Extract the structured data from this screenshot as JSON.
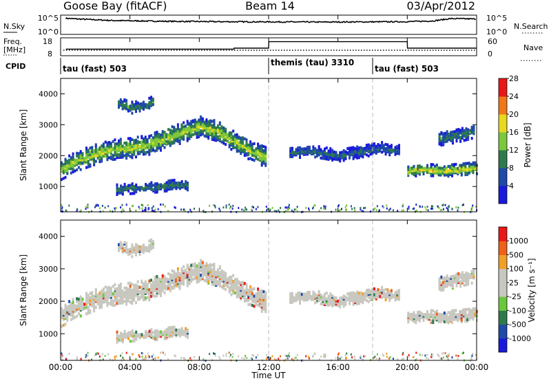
{
  "header": {
    "station": "Goose Bay (fitACF)",
    "beam": "Beam 14",
    "date": "03/Apr/2012"
  },
  "sky_panel": {
    "left_label": "N.Sky",
    "right_label": "N.Search",
    "left_ticks": [
      "10^5",
      "10^0"
    ],
    "right_ticks": [
      "10^5",
      "10^0"
    ]
  },
  "freq_panel": {
    "left_label_top": "Freq.",
    "left_label_bottom": "[MHz]",
    "right_label": "Nave",
    "left_ticks": [
      "18",
      "8"
    ],
    "right_ticks": [
      "60",
      "0"
    ]
  },
  "cpid_panel": {
    "label": "CPID",
    "segments": [
      {
        "label": "tau (fast) 503",
        "start_hour": 0,
        "end_hour": 12
      },
      {
        "label": "themis (tau) 3310",
        "start_hour": 12,
        "end_hour": 18
      },
      {
        "label": "tau (fast) 503",
        "start_hour": 18,
        "end_hour": 24
      }
    ]
  },
  "x_axis": {
    "label": "Time UT",
    "ticks": [
      "00:00",
      "04:00",
      "08:00",
      "12:00",
      "16:00",
      "20:00",
      "00:00"
    ]
  },
  "power_panel": {
    "ylabel": "Slant Range [km]",
    "yticks": [
      "1000",
      "2000",
      "3000",
      "4000"
    ],
    "colorbar_label": "Power [dB]",
    "colorbar_ticks": [
      "4",
      "8",
      "12",
      "16",
      "20",
      "24",
      "28"
    ],
    "colors": [
      "#1a1adc",
      "#1f4aa8",
      "#2e7a4e",
      "#7cc83c",
      "#e8d820",
      "#f07818",
      "#e81818"
    ]
  },
  "velocity_panel": {
    "ylabel": "Slant Range [km]",
    "yticks": [
      "1000",
      "2000",
      "3000",
      "4000"
    ],
    "colorbar_label": "Velocity [m s⁻¹]",
    "colorbar_ticks": [
      "1000",
      "500",
      "100",
      "25",
      "-25",
      "-100",
      "-500",
      "-1000"
    ],
    "colors": [
      "#1a1adc",
      "#1f4aa8",
      "#2e7a4e",
      "#6ac83c",
      "#c8c8c0",
      "#c8c8c0",
      "#f0a028",
      "#f06018",
      "#e81818"
    ]
  },
  "chart_data": {
    "type": "heatmap",
    "x_range_hours": [
      0,
      24
    ],
    "y_range_km": [
      180,
      4500
    ],
    "grid": false,
    "echo_bands": [
      {
        "name_hint": "main band",
        "hours": [
          0.0,
          1.0,
          2.0,
          3.0,
          4.0,
          5.0,
          6.0,
          7.0,
          8.0,
          9.0,
          10.0,
          11.0,
          11.8
        ],
        "center_km": [
          1550,
          1850,
          2050,
          2200,
          2250,
          2350,
          2550,
          2750,
          2950,
          2800,
          2450,
          2150,
          1950
        ],
        "width_km": 320,
        "power_db": 16
      },
      {
        "name_hint": "upper patch",
        "hours": [
          3.3,
          4.0,
          4.8,
          5.3
        ],
        "center_km": [
          3700,
          3550,
          3600,
          3750
        ],
        "width_km": 180,
        "power_db": 10
      },
      {
        "name_hint": "lower patch",
        "hours": [
          3.2,
          4.5,
          5.5,
          6.5,
          7.3
        ],
        "center_km": [
          900,
          950,
          980,
          1050,
          1050
        ],
        "width_km": 160,
        "power_db": 10
      },
      {
        "name_hint": "evening band",
        "hours": [
          13.2,
          14.5,
          16.0,
          17.5,
          18.5,
          19.5
        ],
        "center_km": [
          2100,
          2150,
          2000,
          2150,
          2250,
          2150
        ],
        "width_km": 180,
        "power_db": 8
      },
      {
        "name_hint": "late band",
        "hours": [
          20.0,
          21.0,
          22.0,
          23.0,
          24.0
        ],
        "center_km": [
          1500,
          1550,
          1500,
          1550,
          1600
        ],
        "width_km": 180,
        "power_db": 18
      },
      {
        "name_hint": "late upper",
        "hours": [
          21.8,
          22.8,
          23.8
        ],
        "center_km": [
          2550,
          2650,
          2800
        ],
        "width_km": 220,
        "power_db": 10
      }
    ],
    "sky_noise": {
      "hours": [
        0,
        1,
        3,
        6,
        9,
        12,
        15,
        18,
        20,
        21.5,
        22.5,
        24
      ],
      "level": [
        0.85,
        0.8,
        0.72,
        0.68,
        0.66,
        0.65,
        0.64,
        0.65,
        0.66,
        0.7,
        0.82,
        0.8
      ]
    },
    "frequency_mhz": {
      "hours": [
        0.3,
        10,
        10.01,
        12,
        12.01,
        20,
        20.01,
        24
      ],
      "values": [
        12.0,
        12.0,
        12.6,
        12.6,
        16.5,
        16.5,
        12.6,
        12.6
      ]
    }
  }
}
